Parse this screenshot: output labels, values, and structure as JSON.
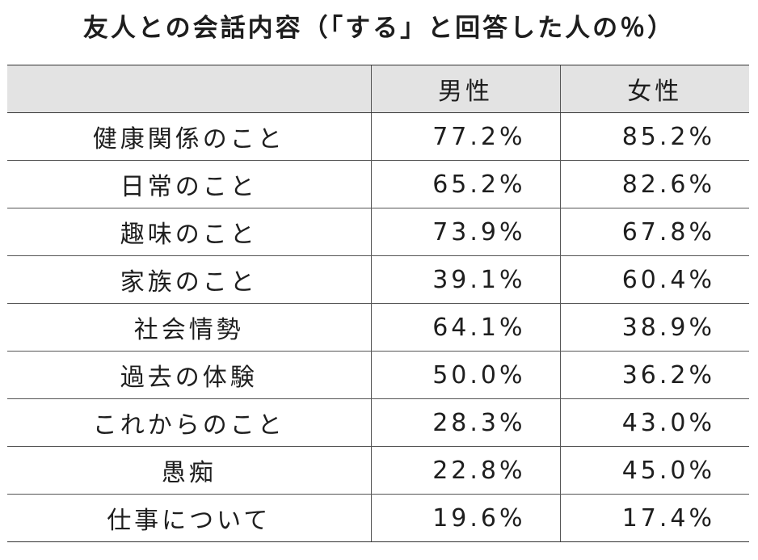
{
  "chart_data": {
    "type": "table",
    "title": "友人との会話内容（「する」と回答した人の％）",
    "columns": [
      "",
      "男性",
      "女性"
    ],
    "categories": [
      "健康関係のこと",
      "日常のこと",
      "趣味のこと",
      "家族のこと",
      "社会情勢",
      "過去の体験",
      "これからのこと",
      "愚痴",
      "仕事について"
    ],
    "series": [
      {
        "name": "男性",
        "values": [
          77.2,
          65.2,
          73.9,
          39.1,
          64.1,
          50.0,
          28.3,
          22.8,
          19.6
        ],
        "labels": [
          "77.2%",
          "65.2%",
          "73.9%",
          "39.1%",
          "64.1%",
          "50.0%",
          "28.3%",
          "22.8%",
          "19.6%"
        ]
      },
      {
        "name": "女性",
        "values": [
          85.2,
          82.6,
          67.8,
          60.4,
          38.9,
          36.2,
          43.0,
          45.0,
          17.4
        ],
        "labels": [
          "85.2%",
          "82.6%",
          "67.8%",
          "60.4%",
          "38.9%",
          "36.2%",
          "43.0%",
          "45.0%",
          "17.4%"
        ]
      }
    ],
    "colors": {
      "header_background": "#e3e3e3",
      "text": "#1e1e1e",
      "rule": "#555555"
    }
  }
}
